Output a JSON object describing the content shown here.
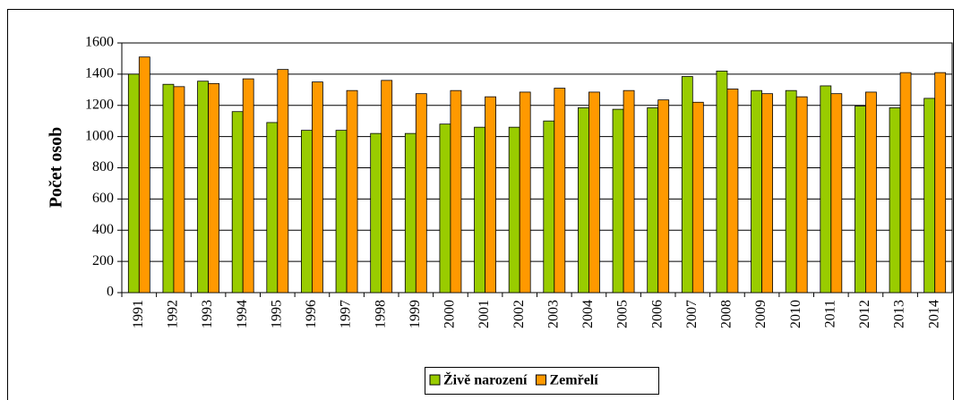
{
  "chart_data": {
    "type": "bar",
    "y_label": "Počet osob",
    "categories": [
      "1991",
      "1992",
      "1993",
      "1994",
      "1995",
      "1996",
      "1997",
      "1998",
      "1999",
      "2000",
      "2001",
      "2002",
      "2003",
      "2004",
      "2005",
      "2006",
      "2007",
      "2008",
      "2009",
      "2010",
      "2011",
      "2012",
      "2013",
      "2014"
    ],
    "series": [
      {
        "name": "Živě narození",
        "color": "#99cc00",
        "values": [
          1400,
          1335,
          1355,
          1160,
          1090,
          1040,
          1040,
          1020,
          1020,
          1080,
          1060,
          1060,
          1100,
          1185,
          1175,
          1185,
          1385,
          1420,
          1295,
          1295,
          1325,
          1195,
          1185,
          1245
        ]
      },
      {
        "name": "Zemřelí",
        "color": "#ff9900",
        "values": [
          1510,
          1320,
          1340,
          1370,
          1430,
          1350,
          1295,
          1360,
          1275,
          1295,
          1255,
          1285,
          1310,
          1285,
          1295,
          1235,
          1220,
          1305,
          1275,
          1255,
          1275,
          1285,
          1410,
          1410
        ]
      }
    ],
    "ylim": [
      0,
      1600
    ],
    "yticks": [
      0,
      200,
      400,
      600,
      800,
      1000,
      1200,
      1400,
      1600
    ],
    "grid": true,
    "legend": "bottom"
  }
}
